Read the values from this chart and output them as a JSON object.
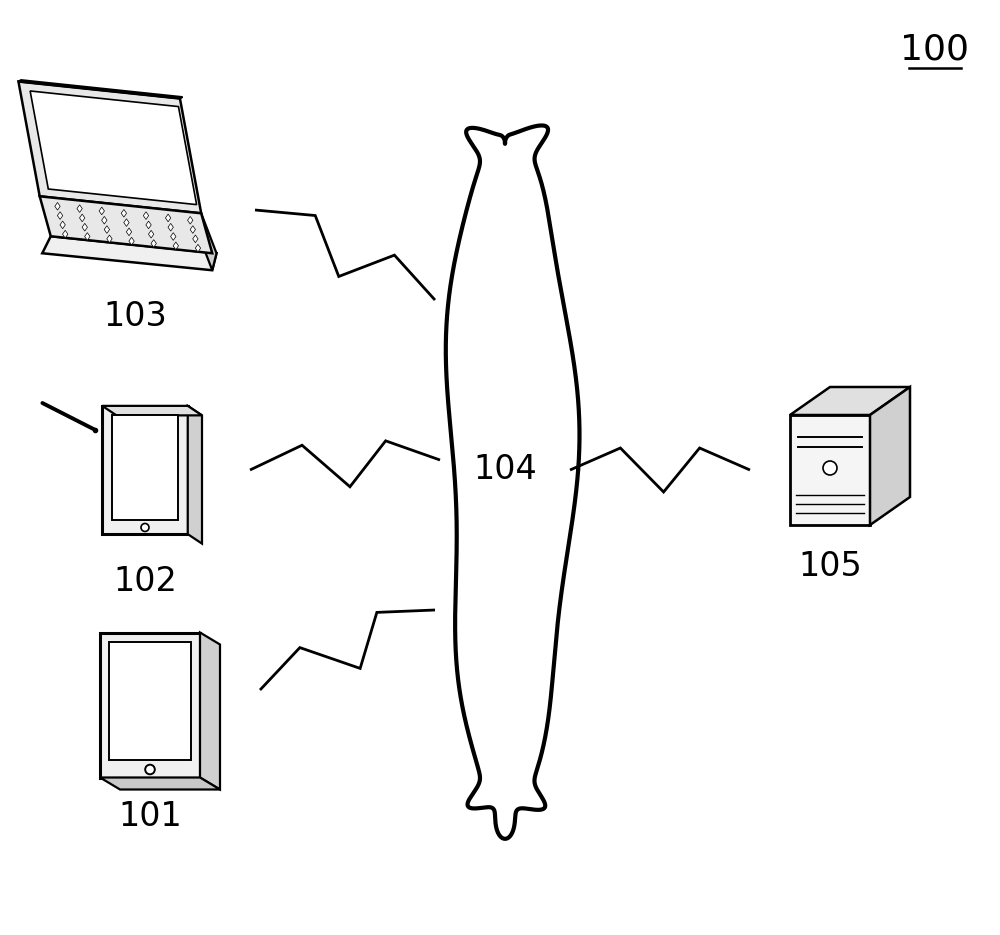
{
  "background_color": "#ffffff",
  "label_100": "100",
  "label_101": "101",
  "label_102": "102",
  "label_103": "103",
  "label_104": "104",
  "label_105": "105",
  "line_color": "#000000",
  "line_width": 2.0,
  "font_size": 22
}
